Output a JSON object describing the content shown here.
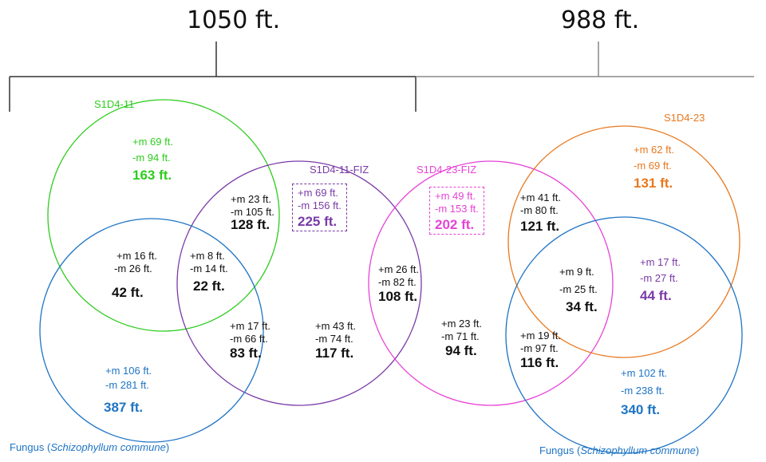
{
  "totals": {
    "left": "1050 ft.",
    "right": "988 ft."
  },
  "sets": {
    "s1d4_11": "S1D4-11",
    "s1d4_11_fiz": "S1D4-11-FIZ",
    "s1d4_23_fiz": "S1D4-23-FIZ",
    "s1d4_23": "S1D4-23",
    "fungus_left": {
      "prefix": "Fungus (",
      "name": "Schizophyllum  commune",
      "suffix": ")"
    },
    "fungus_right": {
      "prefix": "Fungus (",
      "name": "Schizophyllum  commune",
      "suffix": ")"
    }
  },
  "regions": {
    "s11_only": {
      "plus": "+m 69 ft.",
      "minus": "-m 94 ft.",
      "total": "163 ft."
    },
    "s11_fiz11": {
      "plus": "+m 23 ft.",
      "minus": "-m 105 ft.",
      "total": "128 ft."
    },
    "fiz11_only": {
      "plus": "+m 69 ft.",
      "minus": "-m  156 ft.",
      "total": "225 ft."
    },
    "s11_fungus": {
      "plus": "+m 16 ft.",
      "minus": "-m 26 ft.",
      "total": "42 ft."
    },
    "s11_fiz11_fungus": {
      "plus": "+m 8 ft.",
      "minus": "-m 14 ft.",
      "total": "22 ft."
    },
    "fiz11_fungus": {
      "plus": "+m 17 ft.",
      "minus": "-m  66 ft.",
      "total": "83 ft."
    },
    "fiz11_other": {
      "plus": "+m 43 ft.",
      "minus": "-m 74 ft.",
      "total": "117 ft."
    },
    "fiz11_fiz23": {
      "plus": "+m 26 ft.",
      "minus": "-m 82 ft.",
      "total": "108 ft."
    },
    "fungus_left_only": {
      "plus": "+m 106 ft.",
      "minus": "-m 281 ft.",
      "total": "387 ft."
    },
    "fiz23_only": {
      "plus": "+m 49 ft.",
      "minus": "-m  153 ft.",
      "total": "202 ft."
    },
    "fiz23_other": {
      "plus": "+m 23 ft.",
      "minus": "-m 71 ft.",
      "total": "94 ft."
    },
    "fiz23_s23": {
      "plus": "+m 41 ft.",
      "minus": "-m 80 ft.",
      "total": "121 ft."
    },
    "fiz23_s23_fungus": {
      "plus": "+m 9 ft.",
      "minus": "-m 25 ft.",
      "total": "34 ft."
    },
    "fiz23_fungus": {
      "plus": "+m 19 ft.",
      "minus": "-m 97 ft.",
      "total": "116 ft."
    },
    "s23_only": {
      "plus": "+m 62 ft.",
      "minus": "-m 69 ft.",
      "total": "131 ft."
    },
    "s23_fungus": {
      "plus": "+m 17 ft.",
      "minus": "-m 27 ft.",
      "total": "44 ft."
    },
    "fungus_right_only": {
      "plus": "+m 102 ft.",
      "minus": "-m 238 ft.",
      "total": "340 ft."
    }
  },
  "colors": {
    "s1d4_11": "#2ecc1e",
    "s1d4_11_fiz": "#7a3aa6",
    "s1d4_23_fiz": "#e642d6",
    "s1d4_23": "#e8781e",
    "fungus": "#1f74c4"
  }
}
